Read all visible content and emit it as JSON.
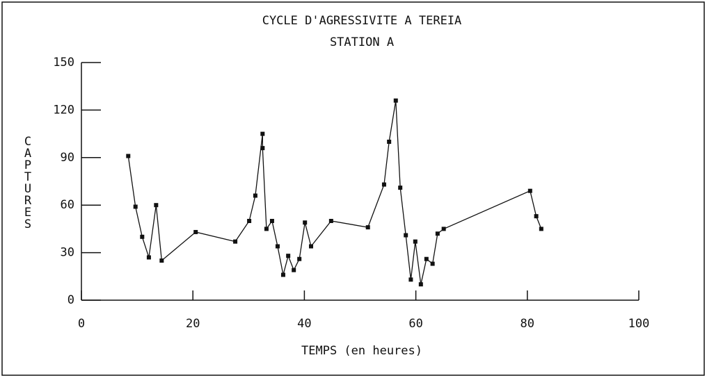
{
  "chart_data": {
    "type": "line",
    "title": "CYCLE D'AGRESSIVITE A TEREIA",
    "subtitle": "STATION A",
    "x_label": "TEMPS (en heures)",
    "y_label": "CAPTURES",
    "x": [
      8.4,
      9.7,
      10.9,
      12.1,
      13.4,
      14.4,
      20.5,
      27.6,
      30.1,
      31.2,
      32.5,
      32.5,
      33.2,
      34.2,
      35.2,
      36.2,
      37.1,
      38.1,
      39.1,
      40.1,
      41.2,
      44.8,
      51.4,
      54.3,
      55.2,
      56.4,
      57.2,
      58.2,
      59.1,
      59.9,
      60.9,
      61.9,
      63.0,
      63.9,
      65.0,
      80.5,
      81.6,
      82.5
    ],
    "series": [
      {
        "name": "CAPTURES",
        "color": "#111111",
        "values": [
          91,
          59,
          40,
          27,
          60,
          25,
          43,
          37,
          50,
          66,
          105,
          96,
          45,
          50,
          34,
          16,
          28,
          19,
          26,
          49,
          34,
          50,
          46,
          73,
          100,
          126,
          71,
          41,
          13,
          37,
          10,
          26,
          23,
          42,
          45,
          69,
          53,
          45
        ]
      }
    ],
    "xlim": [
      0,
      100
    ],
    "xticks": [
      0,
      20,
      40,
      60,
      80,
      100
    ],
    "ylim": [
      0,
      150
    ],
    "yticks": [
      0,
      30,
      60,
      90,
      120,
      150
    ]
  }
}
